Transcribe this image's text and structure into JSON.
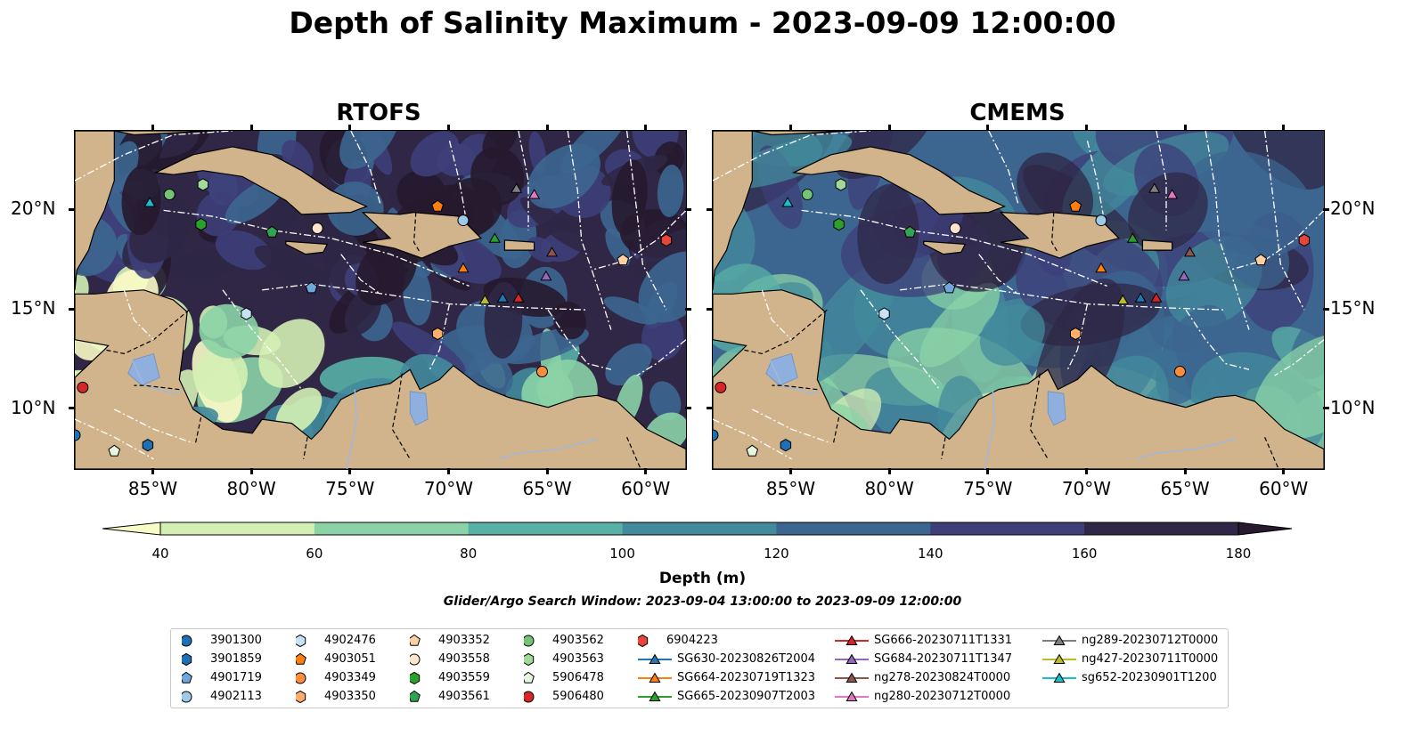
{
  "title": "Depth of Salinity Maximum - 2023-09-09 12:00:00",
  "panels": [
    {
      "name": "RTOFS"
    },
    {
      "name": "CMEMS"
    }
  ],
  "map": {
    "lon_range": [
      -89,
      -58
    ],
    "lat_range": [
      7,
      24
    ],
    "lon_ticks": [
      "85°W",
      "80°W",
      "75°W",
      "70°W",
      "65°W",
      "60°W"
    ],
    "lat_ticks": [
      "20°N",
      "15°N",
      "10°N"
    ],
    "land_color": "#d2b48c",
    "lake_color": "#8fb0de"
  },
  "colorbar": {
    "label": "Depth (m)",
    "ticks": [
      "40",
      "60",
      "80",
      "100",
      "120",
      "140",
      "160",
      "180"
    ],
    "colors": [
      "#f9fbc6",
      "#d4efb4",
      "#8bd3a6",
      "#58b0a6",
      "#438b9c",
      "#3c6690",
      "#3e3f7a",
      "#2f2745",
      "#261a2e"
    ],
    "extend": "both"
  },
  "search_window": "Glider/Argo Search Window: 2023-09-04 13:00:00 to 2023-09-09 12:00:00",
  "legend": [
    {
      "label": "3901300",
      "marker": "circle",
      "color": "#1f6fb4"
    },
    {
      "label": "3901859",
      "marker": "hexagon",
      "color": "#1f6fb4"
    },
    {
      "label": "4901719",
      "marker": "pentagon",
      "color": "#6fa8dc"
    },
    {
      "label": "4902113",
      "marker": "circle",
      "color": "#9ecae9"
    },
    {
      "label": "4902476",
      "marker": "hexagon",
      "color": "#c6e2f5"
    },
    {
      "label": "4903051",
      "marker": "pentagon",
      "color": "#ff7f0e"
    },
    {
      "label": "4903349",
      "marker": "circle",
      "color": "#fd8d3c"
    },
    {
      "label": "4903350",
      "marker": "hexagon",
      "color": "#fdae6b"
    },
    {
      "label": "4903352",
      "marker": "pentagon",
      "color": "#fdd0a2"
    },
    {
      "label": "4903558",
      "marker": "circle",
      "color": "#fee6ce"
    },
    {
      "label": "4903559",
      "marker": "hexagon",
      "color": "#2ca02c"
    },
    {
      "label": "4903561",
      "marker": "pentagon",
      "color": "#31a354"
    },
    {
      "label": "4903562",
      "marker": "circle",
      "color": "#74c476"
    },
    {
      "label": "4903563",
      "marker": "hexagon",
      "color": "#a1d99b"
    },
    {
      "label": "5906478",
      "marker": "pentagon",
      "color": "#e5f5e0"
    },
    {
      "label": "5906480",
      "marker": "circle",
      "color": "#d62728"
    },
    {
      "label": "6904223",
      "marker": "hexagon",
      "color": "#e6453a"
    },
    {
      "label": "SG630-20230826T2004",
      "marker": "triangle",
      "color": "#1f77b4"
    },
    {
      "label": "SG664-20230719T1323",
      "marker": "triangle",
      "color": "#ff7f0e"
    },
    {
      "label": "SG665-20230907T2003",
      "marker": "triangle",
      "color": "#2ca02c"
    },
    {
      "label": "SG666-20230711T1331",
      "marker": "triangle",
      "color": "#d62728"
    },
    {
      "label": "SG684-20230711T1347",
      "marker": "triangle",
      "color": "#9467bd"
    },
    {
      "label": "ng278-20230824T0000",
      "marker": "triangle",
      "color": "#8c564b"
    },
    {
      "label": "ng280-20230712T0000",
      "marker": "triangle",
      "color": "#e377c2"
    },
    {
      "label": "ng289-20230712T0000",
      "marker": "triangle",
      "color": "#7f7f7f"
    },
    {
      "label": "ng427-20230711T0000",
      "marker": "triangle",
      "color": "#bcbd22"
    },
    {
      "label": "sg652-20230901T1200",
      "marker": "triangle",
      "color": "#17becf"
    }
  ],
  "markers": [
    {
      "id": "3901300",
      "lon": -89.0,
      "lat": 8.7
    },
    {
      "id": "3901859",
      "lon": -85.3,
      "lat": 8.2
    },
    {
      "id": "4901719",
      "lon": -77.0,
      "lat": 16.1
    },
    {
      "id": "4902113",
      "lon": -69.3,
      "lat": 19.5
    },
    {
      "id": "4902476",
      "lon": -80.3,
      "lat": 14.8
    },
    {
      "id": "4903051",
      "lon": -70.6,
      "lat": 20.2
    },
    {
      "id": "4903349",
      "lon": -65.3,
      "lat": 11.9
    },
    {
      "id": "4903350",
      "lon": -70.6,
      "lat": 13.8
    },
    {
      "id": "4903352",
      "lon": -61.2,
      "lat": 17.5
    },
    {
      "id": "4903558",
      "lon": -76.7,
      "lat": 19.1
    },
    {
      "id": "4903559",
      "lon": -82.6,
      "lat": 19.3
    },
    {
      "id": "4903561",
      "lon": -79.0,
      "lat": 18.9
    },
    {
      "id": "4903562",
      "lon": -84.2,
      "lat": 20.8
    },
    {
      "id": "4903563",
      "lon": -82.5,
      "lat": 21.3
    },
    {
      "id": "5906478",
      "lon": -87.0,
      "lat": 7.9
    },
    {
      "id": "5906480",
      "lon": -88.6,
      "lat": 11.1
    },
    {
      "id": "6904223",
      "lon": -59.0,
      "lat": 18.5
    },
    {
      "id": "SG630-20230826T2004",
      "lon": -67.3,
      "lat": 15.6
    },
    {
      "id": "SG664-20230719T1323",
      "lon": -69.3,
      "lat": 17.1
    },
    {
      "id": "SG665-20230907T2003",
      "lon": -67.7,
      "lat": 18.6
    },
    {
      "id": "SG666-20230711T1331",
      "lon": -66.5,
      "lat": 15.6
    },
    {
      "id": "SG684-20230711T1347",
      "lon": -65.1,
      "lat": 16.7
    },
    {
      "id": "ng278-20230824T0000",
      "lon": -64.8,
      "lat": 17.9
    },
    {
      "id": "ng280-20230712T0000",
      "lon": -65.7,
      "lat": 20.8
    },
    {
      "id": "ng289-20230712T0000",
      "lon": -66.6,
      "lat": 21.1
    },
    {
      "id": "ng427-20230711T0000",
      "lon": -68.2,
      "lat": 15.5
    },
    {
      "id": "sg652-20230901T1200",
      "lon": -85.2,
      "lat": 20.4
    }
  ]
}
